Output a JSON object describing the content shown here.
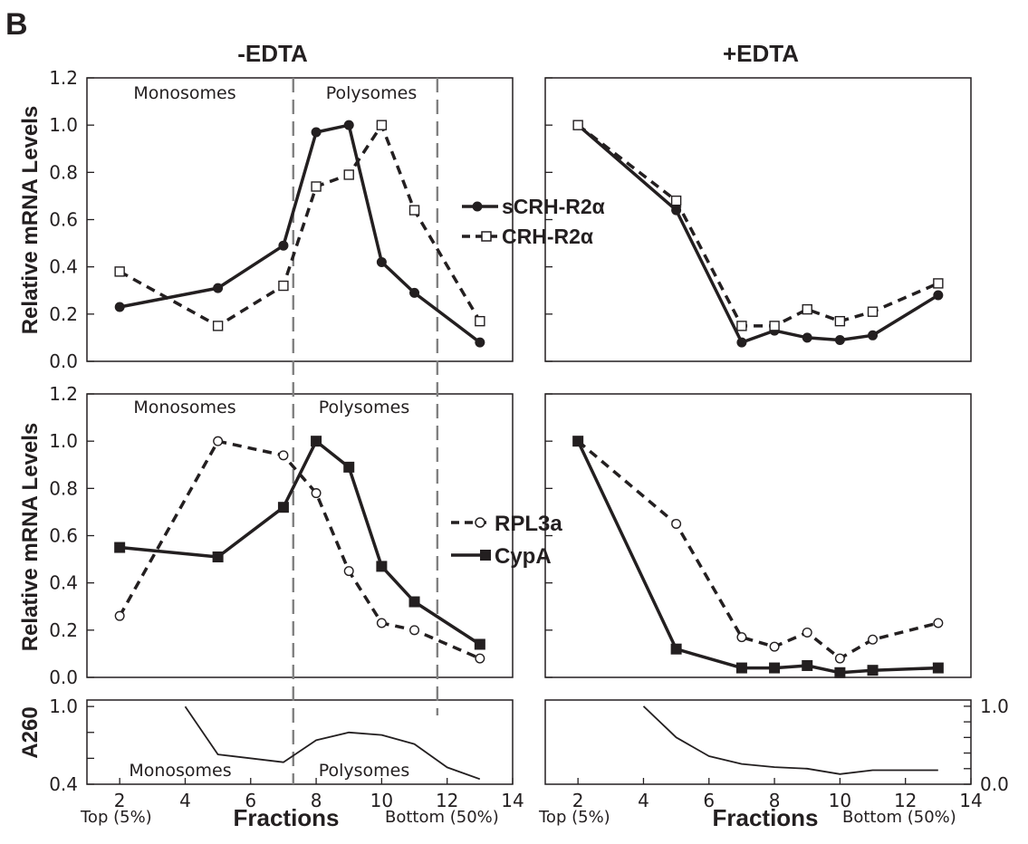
{
  "figure": {
    "panel_letter": "B",
    "left_title": "-EDTA",
    "right_title": "+EDTA",
    "ylabel_top": "Relative mRNA Levels",
    "ylabel_mid": "Relative mRNA Levels",
    "ylabel_bottom": "A260",
    "xlabel_left": "Fractions",
    "xlabel_right": "Fractions",
    "x_top_note_left": "Top (5%)",
    "x_bottom_note_left": "Bottom (50%)",
    "x_top_note_right": "Top (5%)",
    "x_bottom_note_right": "Bottom (50%)",
    "monosomes": "Monosomes",
    "polysomes": "Polysomes",
    "legend_top": {
      "solid": "sCRH-R2α",
      "dashed": "CRH-R2α"
    },
    "legend_mid": {
      "dashed": "RPL3a",
      "solid": "CypA"
    },
    "colors": {
      "ink": "#231f20",
      "divider": "#808080"
    }
  },
  "chart_data": [
    {
      "type": "line",
      "panel": "top-left",
      "title": "-EDTA",
      "ylabel": "Relative mRNA Levels",
      "xlim": [
        1,
        14
      ],
      "ylim": [
        0,
        1.2
      ],
      "yticks": [
        "0.0",
        "0.2",
        "0.4",
        "0.6",
        "0.8",
        "1.0",
        "1.2"
      ],
      "legend_placement": "right",
      "series": [
        {
          "name": "sCRH-R2α",
          "style": "solid",
          "marker": "filled-circle",
          "x": [
            2,
            5,
            7,
            8,
            9,
            10,
            11,
            13
          ],
          "y": [
            0.23,
            0.31,
            0.49,
            0.97,
            1.0,
            0.42,
            0.29,
            0.08
          ]
        },
        {
          "name": "CRH-R2α",
          "style": "dashed",
          "marker": "open-square",
          "x": [
            2,
            5,
            7,
            8,
            9,
            10,
            11,
            13
          ],
          "y": [
            0.38,
            0.15,
            0.32,
            0.74,
            0.79,
            1.0,
            0.64,
            0.17
          ]
        }
      ]
    },
    {
      "type": "line",
      "panel": "top-right",
      "title": "+EDTA",
      "xlim": [
        1,
        14
      ],
      "ylim": [
        0,
        1.2
      ],
      "series": [
        {
          "name": "sCRH-R2α",
          "style": "solid",
          "marker": "filled-circle",
          "x": [
            2,
            5,
            7,
            8,
            9,
            10,
            11,
            13
          ],
          "y": [
            1.0,
            0.64,
            0.08,
            0.13,
            0.1,
            0.09,
            0.11,
            0.28
          ]
        },
        {
          "name": "CRH-R2α",
          "style": "dashed",
          "marker": "open-square",
          "x": [
            2,
            5,
            7,
            8,
            9,
            10,
            11,
            13
          ],
          "y": [
            1.0,
            0.68,
            0.15,
            0.15,
            0.22,
            0.17,
            0.21,
            0.33
          ]
        }
      ]
    },
    {
      "type": "line",
      "panel": "mid-left",
      "ylabel": "Relative mRNA Levels",
      "xlim": [
        1,
        14
      ],
      "ylim": [
        0,
        1.2
      ],
      "yticks": [
        "0.0",
        "0.2",
        "0.4",
        "0.6",
        "0.8",
        "1.0",
        "1.2"
      ],
      "legend_placement": "right",
      "series": [
        {
          "name": "RPL3a",
          "style": "dashed",
          "marker": "open-circle",
          "x": [
            2,
            5,
            7,
            8,
            9,
            10,
            11,
            13
          ],
          "y": [
            0.26,
            1.0,
            0.94,
            0.78,
            0.45,
            0.23,
            0.2,
            0.08
          ]
        },
        {
          "name": "CypA",
          "style": "solid",
          "marker": "filled-square",
          "x": [
            2,
            5,
            7,
            8,
            9,
            10,
            11,
            13
          ],
          "y": [
            0.55,
            0.51,
            0.72,
            1.0,
            0.89,
            0.47,
            0.32,
            0.14
          ]
        }
      ]
    },
    {
      "type": "line",
      "panel": "mid-right",
      "xlim": [
        1,
        14
      ],
      "ylim": [
        0,
        1.2
      ],
      "series": [
        {
          "name": "RPL3a",
          "style": "dashed",
          "marker": "open-circle",
          "x": [
            2,
            5,
            7,
            8,
            9,
            10,
            11,
            13
          ],
          "y": [
            1.0,
            0.65,
            0.17,
            0.13,
            0.19,
            0.08,
            0.16,
            0.23
          ]
        },
        {
          "name": "CypA",
          "style": "solid",
          "marker": "filled-square",
          "x": [
            2,
            5,
            7,
            8,
            9,
            10,
            11,
            13
          ],
          "y": [
            1.0,
            0.12,
            0.04,
            0.04,
            0.05,
            0.02,
            0.03,
            0.04
          ]
        }
      ]
    },
    {
      "type": "line",
      "panel": "bottom-left",
      "ylabel": "A260",
      "xlabel": "Fractions",
      "xlim": [
        1,
        14
      ],
      "ylim": [
        0.4,
        1.05
      ],
      "yticks": [
        "0.4",
        "1.0"
      ],
      "xticks": [
        "2",
        "4",
        "6",
        "8",
        "10",
        "12",
        "14"
      ],
      "series": [
        {
          "style": "solid",
          "marker": "none",
          "x": [
            4,
            5,
            7,
            8,
            9,
            10,
            11,
            12,
            13
          ],
          "y": [
            1.0,
            0.63,
            0.57,
            0.74,
            0.8,
            0.78,
            0.71,
            0.53,
            0.44
          ]
        }
      ]
    },
    {
      "type": "line",
      "panel": "bottom-right",
      "xlabel": "Fractions",
      "xlim": [
        1,
        14
      ],
      "ylim": [
        0.0,
        1.08
      ],
      "yticks": [
        "0.0",
        "1.0"
      ],
      "xticks": [
        "2",
        "4",
        "6",
        "8",
        "10",
        "12",
        "14"
      ],
      "series": [
        {
          "style": "solid",
          "marker": "none",
          "x": [
            4,
            5,
            6,
            7,
            8,
            9,
            10,
            11,
            12,
            13
          ],
          "y": [
            1.0,
            0.6,
            0.36,
            0.26,
            0.22,
            0.2,
            0.13,
            0.18,
            0.18,
            0.18
          ]
        }
      ]
    }
  ]
}
